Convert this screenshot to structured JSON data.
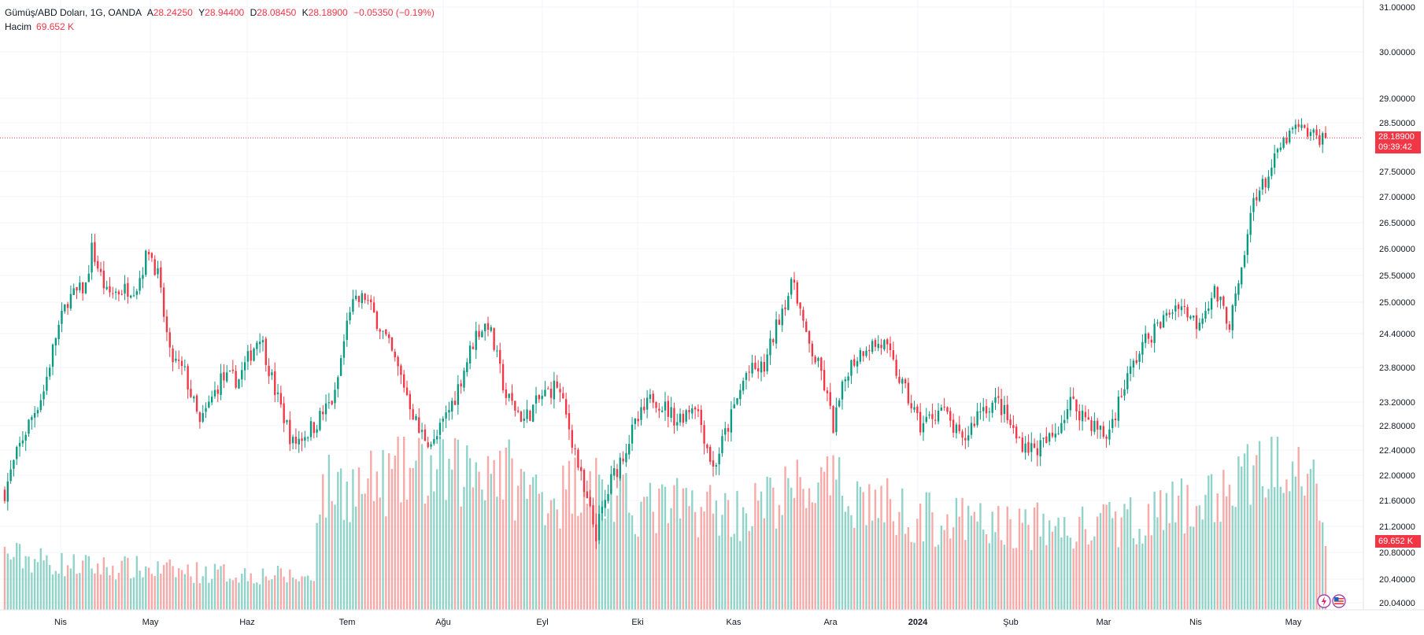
{
  "legend": {
    "symbol": "Gümüş/ABD Doları, 1G, OANDA",
    "open_label": "A",
    "open": "28.24250",
    "high_label": "Y",
    "high": "28.94400",
    "low_label": "D",
    "low": "28.08450",
    "close_label": "K",
    "close": "28.18900",
    "change": "−0.05350 (−0.19%)",
    "volume_label": "Hacim",
    "volume_value": "69.652 K"
  },
  "price_badge": {
    "price": "28.18900",
    "countdown": "09:39:42"
  },
  "volume_badge": "69.652 K",
  "colors": {
    "up": "#089981",
    "down": "#f23645",
    "up_vol": "#8fd3c9",
    "down_vol": "#f7a9a7",
    "grid": "#f0f3fa",
    "axis_text": "#131722"
  },
  "chart_data": {
    "type": "candlestick",
    "title": "Gümüş/ABD Doları, 1G, OANDA",
    "y_axis_labels": [
      "31.00000",
      "30.00000",
      "29.00000",
      "28.50000",
      "27.50000",
      "27.00000",
      "26.50000",
      "26.00000",
      "25.50000",
      "25.00000",
      "24.40000",
      "23.80000",
      "23.20000",
      "22.80000",
      "22.40000",
      "22.00000",
      "21.60000",
      "21.20000",
      "20.80000",
      "20.40000",
      "20.04000"
    ],
    "x_axis_labels": [
      "Nis",
      "May",
      "Haz",
      "Tem",
      "Ağu",
      "Eyl",
      "Eki",
      "Kas",
      "Ara",
      "2024",
      "Şub",
      "Mar",
      "Nis",
      "May"
    ],
    "anchors": [
      [
        0,
        21.75
      ],
      [
        6,
        22.6
      ],
      [
        13,
        23.4
      ],
      [
        17,
        24.35
      ],
      [
        21,
        25.05
      ],
      [
        27,
        25.3
      ],
      [
        29,
        26.0
      ],
      [
        34,
        25.15
      ],
      [
        44,
        25.3
      ],
      [
        48,
        26.0
      ],
      [
        51,
        25.5
      ],
      [
        55,
        24.0
      ],
      [
        60,
        23.7
      ],
      [
        65,
        22.8
      ],
      [
        72,
        23.6
      ],
      [
        78,
        23.6
      ],
      [
        85,
        24.4
      ],
      [
        90,
        23.4
      ],
      [
        96,
        22.5
      ],
      [
        103,
        22.8
      ],
      [
        110,
        23.3
      ],
      [
        115,
        24.9
      ],
      [
        120,
        25.1
      ],
      [
        127,
        24.3
      ],
      [
        133,
        23.5
      ],
      [
        138,
        22.7
      ],
      [
        143,
        22.5
      ],
      [
        150,
        23.3
      ],
      [
        157,
        24.4
      ],
      [
        161,
        24.6
      ],
      [
        167,
        23.3
      ],
      [
        173,
        22.9
      ],
      [
        179,
        23.3
      ],
      [
        184,
        23.5
      ],
      [
        190,
        22.4
      ],
      [
        193,
        21.7
      ],
      [
        197,
        21.1
      ],
      [
        202,
        21.9
      ],
      [
        210,
        22.8
      ],
      [
        216,
        23.3
      ],
      [
        224,
        22.9
      ],
      [
        230,
        23.2
      ],
      [
        236,
        22.1
      ],
      [
        241,
        22.8
      ],
      [
        247,
        23.7
      ],
      [
        253,
        23.8
      ],
      [
        259,
        24.9
      ],
      [
        263,
        25.4
      ],
      [
        267,
        24.3
      ],
      [
        272,
        23.7
      ],
      [
        276,
        22.8
      ],
      [
        281,
        23.8
      ],
      [
        287,
        24.2
      ],
      [
        293,
        24.2
      ],
      [
        298,
        23.6
      ],
      [
        305,
        22.8
      ],
      [
        312,
        23.1
      ],
      [
        319,
        22.5
      ],
      [
        325,
        23.1
      ],
      [
        331,
        23.2
      ],
      [
        337,
        22.6
      ],
      [
        343,
        22.4
      ],
      [
        349,
        22.6
      ],
      [
        355,
        23.2
      ],
      [
        361,
        22.9
      ],
      [
        367,
        22.6
      ],
      [
        373,
        23.5
      ],
      [
        379,
        24.2
      ],
      [
        385,
        24.6
      ],
      [
        391,
        25.0
      ],
      [
        397,
        24.6
      ],
      [
        403,
        25.2
      ],
      [
        408,
        24.6
      ],
      [
        412,
        25.5
      ],
      [
        416,
        27.0
      ],
      [
        420,
        27.3
      ],
      [
        425,
        28.0
      ],
      [
        430,
        28.4
      ],
      [
        437,
        28.2
      ],
      [
        440,
        28.189
      ]
    ],
    "volume_anchors": [
      [
        0,
        0.32
      ],
      [
        14,
        0.28
      ],
      [
        20,
        0.26
      ],
      [
        30,
        0.25
      ],
      [
        44,
        0.24
      ],
      [
        60,
        0.22
      ],
      [
        75,
        0.21
      ],
      [
        90,
        0.2
      ],
      [
        103,
        0.18
      ],
      [
        104,
        0.66
      ],
      [
        110,
        0.72
      ],
      [
        120,
        0.7
      ],
      [
        135,
        0.8
      ],
      [
        150,
        0.78
      ],
      [
        163,
        0.86
      ],
      [
        172,
        0.7
      ],
      [
        185,
        0.66
      ],
      [
        195,
        0.8
      ],
      [
        200,
        0.64
      ],
      [
        215,
        0.58
      ],
      [
        230,
        0.6
      ],
      [
        245,
        0.56
      ],
      [
        260,
        0.66
      ],
      [
        268,
        0.72
      ],
      [
        280,
        0.68
      ],
      [
        290,
        0.62
      ],
      [
        300,
        0.56
      ],
      [
        310,
        0.52
      ],
      [
        320,
        0.5
      ],
      [
        335,
        0.48
      ],
      [
        345,
        0.48
      ],
      [
        355,
        0.46
      ],
      [
        365,
        0.48
      ],
      [
        380,
        0.54
      ],
      [
        390,
        0.58
      ],
      [
        400,
        0.62
      ],
      [
        408,
        0.7
      ],
      [
        415,
        0.78
      ],
      [
        422,
        0.88
      ],
      [
        428,
        0.96
      ],
      [
        432,
        0.98
      ],
      [
        436,
        0.82
      ],
      [
        440,
        0.45
      ]
    ],
    "last_price": 28.189,
    "volume_unit": "K"
  }
}
